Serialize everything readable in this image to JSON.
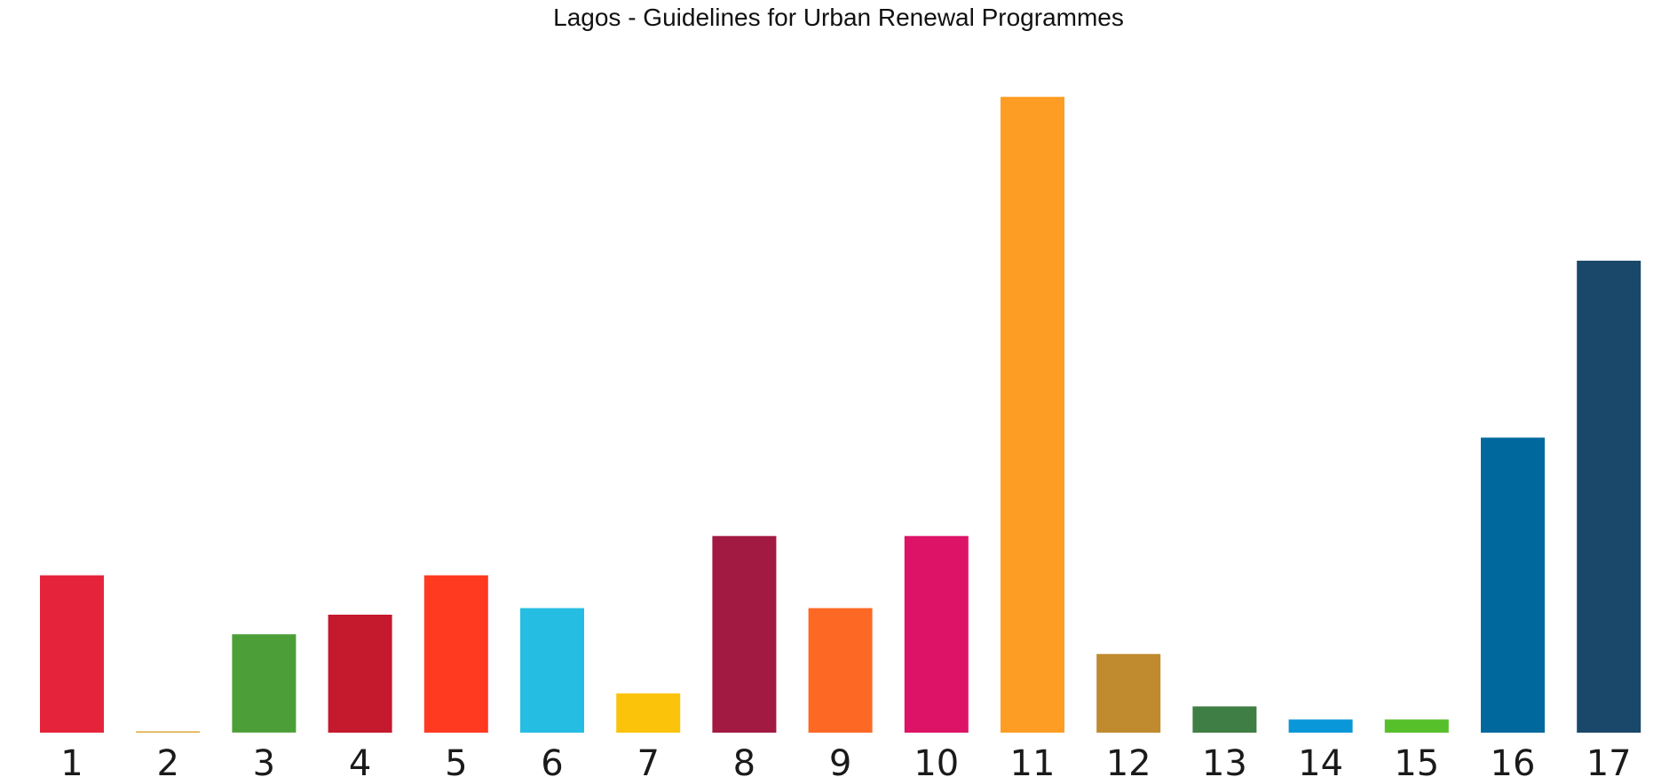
{
  "chart_data": {
    "type": "bar",
    "title": "Lagos - Guidelines for Urban Renewal Programmes",
    "xlabel": "",
    "ylabel": "",
    "categories": [
      "1",
      "2",
      "3",
      "4",
      "5",
      "6",
      "7",
      "8",
      "9",
      "10",
      "11",
      "12",
      "13",
      "14",
      "15",
      "16",
      "17"
    ],
    "values": [
      24,
      0.2,
      15,
      18,
      24,
      19,
      6,
      30,
      19,
      30,
      97,
      12,
      4,
      2,
      2,
      45,
      72
    ],
    "ylim": [
      0,
      100
    ],
    "grid": false,
    "colors": [
      "#e5243b",
      "#dda63a",
      "#4c9f38",
      "#c5192d",
      "#ff3a21",
      "#26bde2",
      "#fcc30b",
      "#a21942",
      "#fd6925",
      "#dd1367",
      "#fd9d24",
      "#bf8b2e",
      "#3f7e44",
      "#0a97d9",
      "#56c02b",
      "#00689d",
      "#19486a"
    ]
  }
}
